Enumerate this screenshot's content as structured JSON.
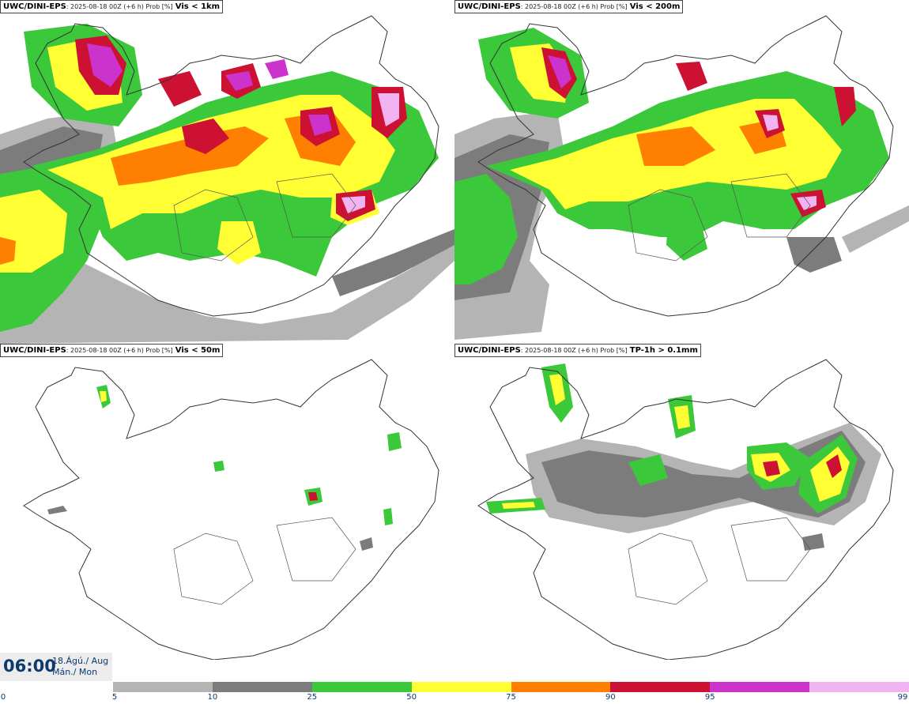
{
  "panels": [
    {
      "model": "UWC/DINI-EPS",
      "subtitle": ": 2025-08-18 00Z (+6 h) Prob [%]",
      "variable": "Vis < 1km"
    },
    {
      "model": "UWC/DINI-EPS",
      "subtitle": ": 2025-08-18 00Z (+6 h) Prob [%]",
      "variable": "Vis < 200m"
    },
    {
      "model": "UWC/DINI-EPS",
      "subtitle": ": 2025-08-18 00Z (+6 h) Prob [%]",
      "variable": "Vis < 50m"
    },
    {
      "model": "UWC/DINI-EPS",
      "subtitle": ": 2025-08-18 00Z (+6 h) Prob [%]",
      "variable": "TP-1h > 0.1mm"
    }
  ],
  "valid_time": {
    "time": "06:00",
    "date_line": "18.Ágú./ Aug",
    "day_line": "Mán./ Mon"
  },
  "colorbar": {
    "ticks": [
      "0",
      "5",
      "10",
      "25",
      "50",
      "75",
      "90",
      "95",
      "99"
    ],
    "colors": [
      "#b4b4b4",
      "#7c7c7c",
      "#3bc83b",
      "#ffff33",
      "#ff7f00",
      "#cc1133",
      "#cc33cc",
      "#f2b3f2"
    ]
  },
  "palette": {
    "grey_light": "#b4b4b4",
    "grey_dark": "#7c7c7c",
    "green": "#3bc83b",
    "yellow": "#ffff33",
    "orange": "#ff7f00",
    "red": "#cc1133",
    "magenta": "#cc33cc",
    "pink": "#f2b3f2",
    "coastline": "#333333"
  }
}
